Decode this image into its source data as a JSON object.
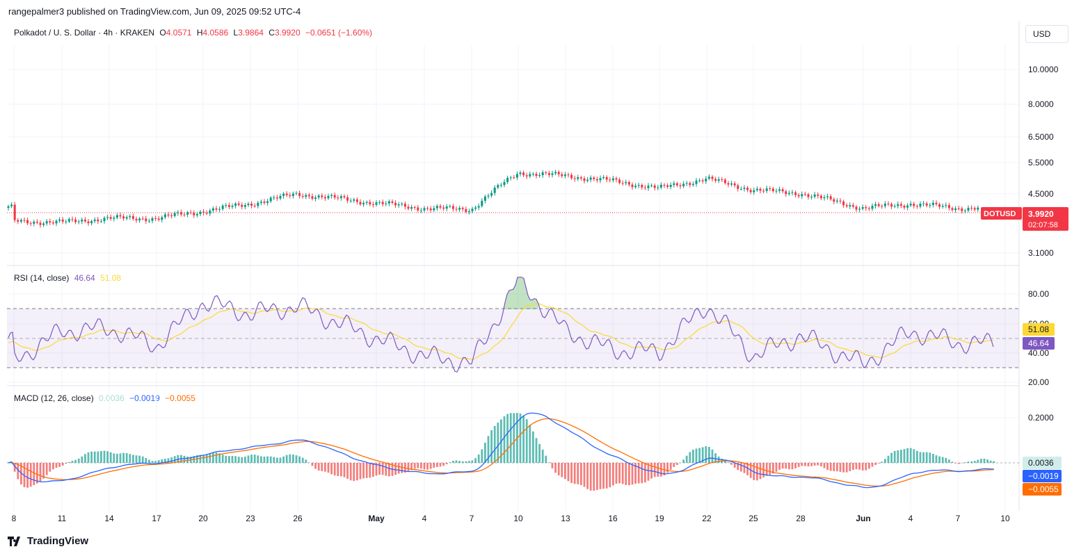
{
  "header": {
    "published_line": "rangepalmer3 published on TradingView.com, Jun 09, 2025 09:52 UTC-4",
    "symbol_desc": "Polkadot / U. S. Dollar · 4h · KRAKEN",
    "o_label": "O",
    "o_value": "4.0571",
    "h_label": "H",
    "h_value": "4.0586",
    "l_label": "L",
    "l_value": "3.9864",
    "c_label": "C",
    "c_value": "3.9920",
    "change": "−0.0651 (−1.60%)"
  },
  "currency_button": "USD",
  "price_axis_labels": [
    "10.0000",
    "8.0000",
    "6.5000",
    "5.5000",
    "4.5000",
    "3.1000"
  ],
  "price_tag": {
    "symbol": "DOTUSD",
    "price": "3.9920",
    "countdown": "02:07:58"
  },
  "rsi": {
    "title": "RSI (14, close)",
    "value": "46.64",
    "ma_value": "51.08",
    "axis_labels": [
      "80.00",
      "60.00",
      "40.00",
      "20.00"
    ],
    "tag_ma": "51.08",
    "tag_rsi": "46.64"
  },
  "macd": {
    "title": "MACD (12, 26, close)",
    "hist": "0.0036",
    "macd": "−0.0019",
    "signal": "−0.0055",
    "axis_labels": [
      "0.2000"
    ],
    "tag_hist": "0.0036",
    "tag_macd": "−0.0019",
    "tag_signal": "−0.0055"
  },
  "time_axis_labels": [
    "8",
    "11",
    "14",
    "17",
    "20",
    "23",
    "26",
    "May",
    "4",
    "7",
    "10",
    "13",
    "16",
    "19",
    "22",
    "25",
    "28",
    "Jun",
    "4",
    "7",
    "10"
  ],
  "brand": "TradingView",
  "colors": {
    "up": "#089981",
    "down": "#f23645",
    "rsi": "#7e57c2",
    "rsi_ma": "#fdd835",
    "macd": "#2962ff",
    "signal": "#ff6d00"
  },
  "chart_data": {
    "type": "candlestick",
    "title": "Polkadot / U. S. Dollar · 4h · KRAKEN",
    "x": [
      "Apr 8",
      "Apr 11",
      "Apr 14",
      "Apr 17",
      "Apr 20",
      "Apr 23",
      "Apr 26",
      "May 1",
      "May 4",
      "May 7",
      "May 10",
      "May 13",
      "May 16",
      "May 19",
      "May 22",
      "May 25",
      "May 28",
      "Jun 1",
      "Jun 4",
      "Jun 7",
      "Jun 9"
    ],
    "series": [
      {
        "values": [
          3.65,
          3.62,
          3.72,
          3.72,
          3.9,
          4.1,
          4.38,
          4.12,
          3.98,
          3.95,
          5.05,
          4.95,
          4.78,
          4.55,
          4.85,
          4.5,
          4.4,
          3.98,
          4.1,
          3.98,
          3.99
        ]
      }
    ],
    "rsi": {
      "values": [
        35,
        55,
        57,
        45,
        75,
        67,
        72,
        50,
        38,
        33,
        90,
        55,
        42,
        41,
        73,
        38,
        52,
        32,
        55,
        47,
        46.64
      ],
      "ma_last": 51.08,
      "bands": [
        30,
        70
      ]
    },
    "macd": {
      "macd_last": -0.0019,
      "signal_last": -0.0055,
      "hist_last": 0.0036
    },
    "ylim": [
      3.0,
      10.5
    ],
    "log_scale": true
  }
}
